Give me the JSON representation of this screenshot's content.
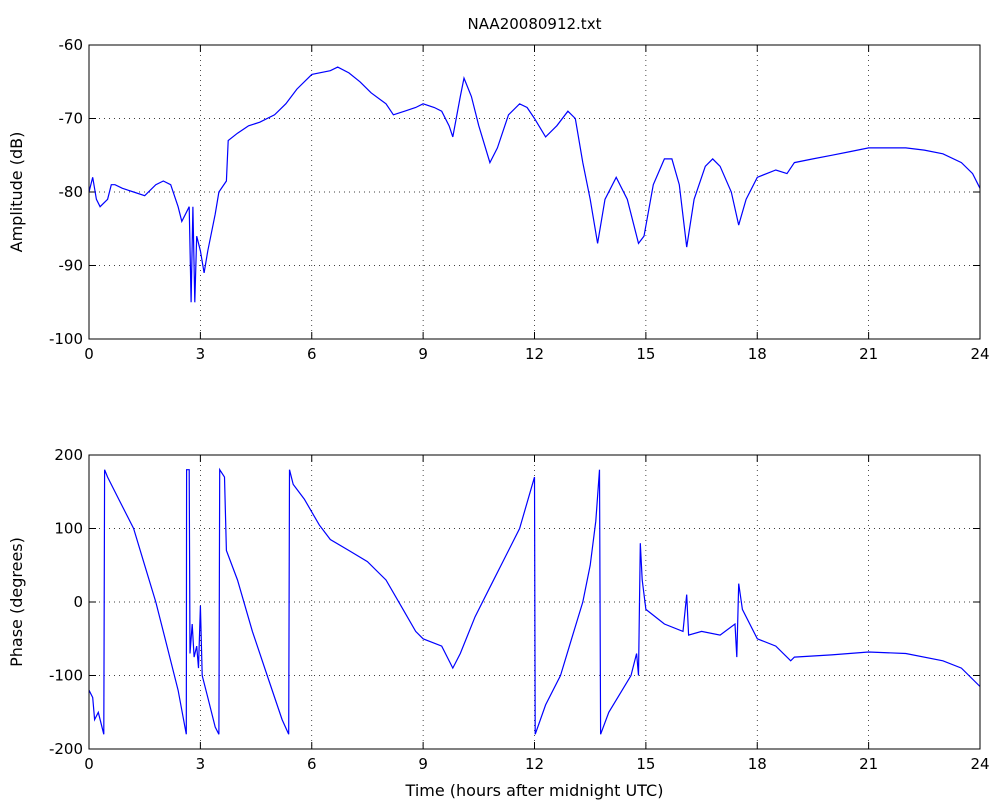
{
  "chart_data": [
    {
      "type": "line",
      "title": "NAA20080912.txt",
      "ylabel": "Amplitude (dB)",
      "color": "#0000ff",
      "grid": true,
      "xlim": [
        0,
        24
      ],
      "xticks": [
        0,
        3,
        6,
        9,
        12,
        15,
        18,
        21,
        24
      ],
      "ylim": [
        -100,
        -60
      ],
      "yticks": [
        -100,
        -90,
        -80,
        -70,
        -60
      ],
      "x": [
        0,
        0.1,
        0.2,
        0.3,
        0.5,
        0.6,
        0.7,
        0.9,
        1.2,
        1.5,
        1.8,
        2.0,
        2.2,
        2.4,
        2.5,
        2.6,
        2.7,
        2.75,
        2.8,
        2.85,
        2.9,
        3.0,
        3.1,
        3.2,
        3.4,
        3.5,
        3.7,
        3.75,
        4.0,
        4.3,
        4.6,
        5.0,
        5.3,
        5.6,
        6.0,
        6.5,
        6.7,
        7.0,
        7.3,
        7.6,
        8.0,
        8.2,
        8.5,
        8.8,
        9.0,
        9.3,
        9.5,
        9.7,
        9.8,
        10.0,
        10.1,
        10.3,
        10.5,
        10.8,
        11.0,
        11.3,
        11.6,
        11.8,
        12.0,
        12.3,
        12.6,
        12.9,
        13.1,
        13.3,
        13.5,
        13.7,
        13.9,
        14.2,
        14.5,
        14.8,
        14.95,
        15.2,
        15.5,
        15.7,
        15.9,
        16.1,
        16.3,
        16.6,
        16.8,
        17.0,
        17.3,
        17.5,
        17.7,
        18.0,
        18.5,
        18.8,
        19.0,
        19.5,
        20.0,
        20.5,
        21.0,
        21.5,
        22.0,
        22.5,
        23.0,
        23.5,
        23.8,
        24
      ],
      "values": [
        -80,
        -78,
        -81,
        -82,
        -81,
        -79,
        -79,
        -79.5,
        -80,
        -80.5,
        -79,
        -78.5,
        -79,
        -82,
        -84,
        -83,
        -82,
        -95,
        -82,
        -95,
        -86,
        -88,
        -91,
        -88,
        -83,
        -80,
        -78.5,
        -73,
        -72,
        -71,
        -70.5,
        -69.5,
        -68,
        -66,
        -64,
        -63.5,
        -63,
        -63.8,
        -65,
        -66.5,
        -68,
        -69.5,
        -69,
        -68.5,
        -68,
        -68.5,
        -69,
        -71,
        -72.5,
        -67,
        -64.5,
        -67,
        -71,
        -76,
        -74,
        -69.5,
        -68,
        -68.5,
        -70,
        -72.5,
        -71,
        -69,
        -70,
        -76,
        -81,
        -87,
        -81,
        -78,
        -81,
        -87,
        -86,
        -79,
        -75.5,
        -75.5,
        -79,
        -87.5,
        -81,
        -76.5,
        -75.5,
        -76.5,
        -80,
        -84.5,
        -81,
        -78,
        -77,
        -77.5,
        -76,
        -75.5,
        -75,
        -74.5,
        -74,
        -74,
        -74,
        -74.3,
        -74.8,
        -76,
        -77.5,
        -79.5
      ]
    },
    {
      "type": "line",
      "xlabel": "Time (hours after midnight UTC)",
      "ylabel": "Phase (degrees)",
      "color": "#0000ff",
      "grid": true,
      "xlim": [
        0,
        24
      ],
      "xticks": [
        0,
        3,
        6,
        9,
        12,
        15,
        18,
        21,
        24
      ],
      "ylim": [
        -200,
        200
      ],
      "yticks": [
        -200,
        -100,
        0,
        100,
        200
      ],
      "x": [
        0,
        0.1,
        0.15,
        0.25,
        0.4,
        0.42,
        0.5,
        0.8,
        1.2,
        1.5,
        1.8,
        2.1,
        2.4,
        2.62,
        2.63,
        2.7,
        2.72,
        2.78,
        2.83,
        2.9,
        2.95,
        3.0,
        3.05,
        3.2,
        3.4,
        3.5,
        3.52,
        3.65,
        3.7,
        4.0,
        4.4,
        4.8,
        5.2,
        5.38,
        5.4,
        5.5,
        5.8,
        6.2,
        6.5,
        7.0,
        7.5,
        8.0,
        8.4,
        8.8,
        9.0,
        9.5,
        9.8,
        10.0,
        10.4,
        10.8,
        11.2,
        11.6,
        12.0,
        12.02,
        12.3,
        12.7,
        13.0,
        13.3,
        13.5,
        13.65,
        13.75,
        13.78,
        14.0,
        14.3,
        14.6,
        14.75,
        14.8,
        14.85,
        14.9,
        15.0,
        15.5,
        16.0,
        16.1,
        16.15,
        16.5,
        17.0,
        17.4,
        17.45,
        17.5,
        17.6,
        18.0,
        18.5,
        18.9,
        19.0,
        20.0,
        21.0,
        22.0,
        23.0,
        23.5,
        24.0
      ],
      "values": [
        -120,
        -130,
        -160,
        -150,
        -180,
        180,
        170,
        140,
        100,
        50,
        0,
        -60,
        -120,
        -180,
        180,
        180,
        -70,
        -30,
        -75,
        -60,
        -90,
        -5,
        -100,
        -130,
        -170,
        -180,
        180,
        170,
        70,
        30,
        -40,
        -100,
        -160,
        -180,
        180,
        160,
        140,
        105,
        85,
        70,
        55,
        30,
        -5,
        -40,
        -50,
        -60,
        -90,
        -70,
        -20,
        20,
        60,
        100,
        170,
        -180,
        -140,
        -100,
        -50,
        0,
        50,
        110,
        180,
        -180,
        -150,
        -125,
        -100,
        -70,
        -100,
        80,
        30,
        -10,
        -30,
        -40,
        10,
        -45,
        -40,
        -45,
        -30,
        -75,
        25,
        -10,
        -50,
        -60,
        -80,
        -75,
        -72,
        -68,
        -70,
        -80,
        -90,
        -115
      ]
    }
  ]
}
